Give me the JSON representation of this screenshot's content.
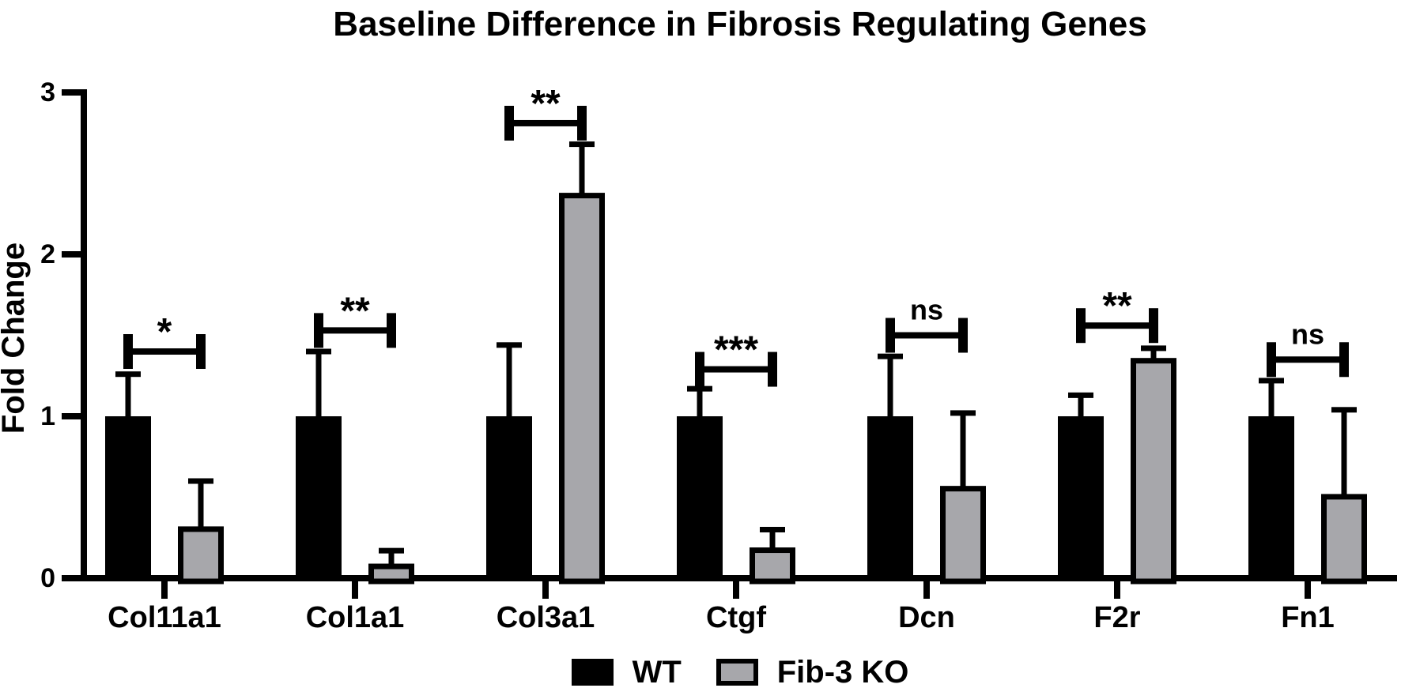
{
  "title": "Baseline Difference in Fibrosis Regulating Genes",
  "chart_data": {
    "type": "bar",
    "title": "Baseline Difference in Fibrosis Regulating Genes",
    "xlabel": "",
    "ylabel": "Fold Change",
    "ylim": [
      0,
      3
    ],
    "yticks": [
      0,
      1,
      2,
      3
    ],
    "grid": false,
    "legend_position": "bottom-center",
    "error_bars": "upper-only",
    "categories": [
      "Col11a1",
      "Col1a1",
      "Col3a1",
      "Ctgf",
      "Dcn",
      "F2r",
      "Fn1"
    ],
    "series": [
      {
        "name": "WT",
        "color": "#000000",
        "values": [
          1.0,
          1.0,
          1.0,
          1.0,
          1.0,
          1.0,
          1.0
        ],
        "error_up": [
          0.26,
          0.4,
          0.44,
          0.17,
          0.37,
          0.13,
          0.22
        ]
      },
      {
        "name": "Fib-3 KO",
        "color": "#a7a7ab",
        "border_color": "#000000",
        "values": [
          0.32,
          0.09,
          2.38,
          0.19,
          0.57,
          1.36,
          0.52
        ],
        "error_up": [
          0.28,
          0.08,
          0.3,
          0.11,
          0.45,
          0.06,
          0.52
        ]
      }
    ],
    "significance": [
      {
        "category": "Col11a1",
        "label": "*",
        "bracket_y": 1.4
      },
      {
        "category": "Col1a1",
        "label": "**",
        "bracket_y": 1.53
      },
      {
        "category": "Col3a1",
        "label": "**",
        "bracket_y": 2.81
      },
      {
        "category": "Ctgf",
        "label": "***",
        "bracket_y": 1.29
      },
      {
        "category": "Dcn",
        "label": "ns",
        "bracket_y": 1.5
      },
      {
        "category": "F2r",
        "label": "**",
        "bracket_y": 1.56
      },
      {
        "category": "Fn1",
        "label": "ns",
        "bracket_y": 1.35
      }
    ]
  },
  "legend": {
    "items": [
      {
        "label": "WT",
        "color": "#000000"
      },
      {
        "label": "Fib-3 KO",
        "color": "#a7a7ab"
      }
    ]
  },
  "colors": {
    "black": "#000000",
    "gray": "#a7a7ab",
    "background": "#ffffff"
  }
}
